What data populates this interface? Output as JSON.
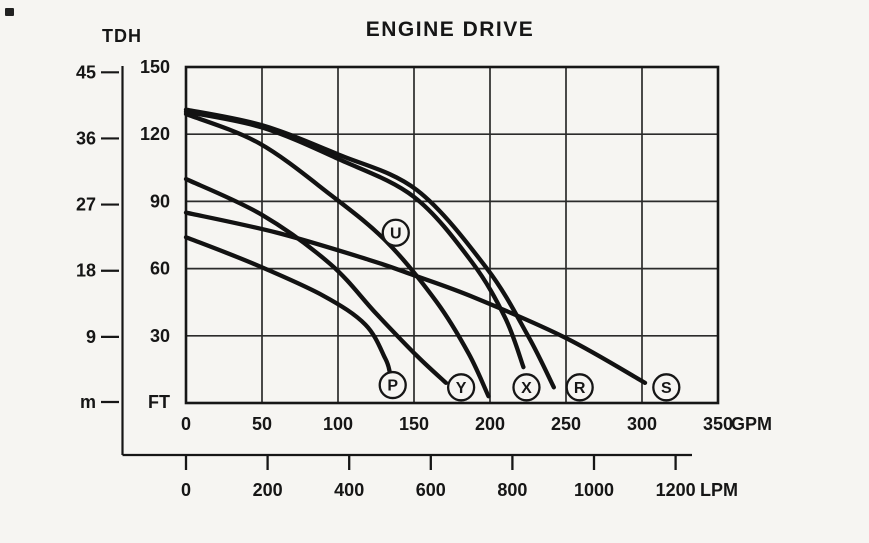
{
  "title": "ENGINE DRIVE",
  "colors": {
    "paper": "#f6f5f2",
    "ink": "#161616",
    "grid": "#2b2b2b",
    "curve": "#121212"
  },
  "chart_data": {
    "type": "line",
    "title": "ENGINE DRIVE",
    "head_label": "TDH",
    "grid": true,
    "y_axis_primary": {
      "unit": "FT",
      "ticks": [
        150,
        120,
        90,
        60,
        30
      ],
      "range": [
        0,
        150
      ]
    },
    "y_axis_secondary": {
      "unit": "m",
      "ticks": [
        45,
        36,
        27,
        18,
        9
      ],
      "range": [
        0,
        45
      ]
    },
    "x_axis_primary": {
      "unit": "GPM",
      "ticks": [
        0,
        50,
        100,
        150,
        200,
        250,
        300,
        350
      ],
      "range": [
        0,
        350
      ]
    },
    "x_axis_secondary": {
      "unit": "LPM",
      "ticks": [
        0,
        200,
        400,
        600,
        800,
        1000,
        1200
      ],
      "range": [
        0,
        1200
      ]
    },
    "series": [
      {
        "name": "P",
        "label": {
          "gpm": 136,
          "ft": 8
        },
        "points": [
          [
            0,
            74
          ],
          [
            45,
            62
          ],
          [
            90,
            48
          ],
          [
            118,
            35
          ],
          [
            131,
            20
          ],
          [
            134,
            14
          ]
        ]
      },
      {
        "name": "Y",
        "label": {
          "gpm": 181,
          "ft": 7
        },
        "points": [
          [
            0,
            100
          ],
          [
            50,
            84
          ],
          [
            95,
            62
          ],
          [
            125,
            40
          ],
          [
            152,
            21
          ],
          [
            171,
            9
          ]
        ]
      },
      {
        "name": "X",
        "label": {
          "gpm": 224,
          "ft": 7
        },
        "points": [
          [
            0,
            130
          ],
          [
            50,
            123
          ],
          [
            100,
            109
          ],
          [
            150,
            92
          ],
          [
            188,
            63
          ],
          [
            210,
            38
          ],
          [
            222,
            16
          ]
        ]
      },
      {
        "name": "R",
        "label": {
          "gpm": 259,
          "ft": 7
        },
        "points": [
          [
            0,
            131
          ],
          [
            50,
            124
          ],
          [
            100,
            111
          ],
          [
            152,
            95
          ],
          [
            198,
            60
          ],
          [
            225,
            30
          ],
          [
            242,
            7
          ]
        ]
      },
      {
        "name": "S",
        "label": {
          "gpm": 316,
          "ft": 7
        },
        "points": [
          [
            0,
            85
          ],
          [
            60,
            76
          ],
          [
            120,
            64
          ],
          [
            150,
            57
          ],
          [
            190,
            47
          ],
          [
            250,
            29
          ],
          [
            302,
            9
          ]
        ]
      },
      {
        "name": "U",
        "label": {
          "gpm": 138,
          "ft": 76
        },
        "points": [
          [
            0,
            129
          ],
          [
            48,
            116
          ],
          [
            95,
            93
          ],
          [
            132,
            72
          ],
          [
            165,
            45
          ],
          [
            186,
            22
          ],
          [
            199,
            3
          ]
        ]
      }
    ]
  }
}
